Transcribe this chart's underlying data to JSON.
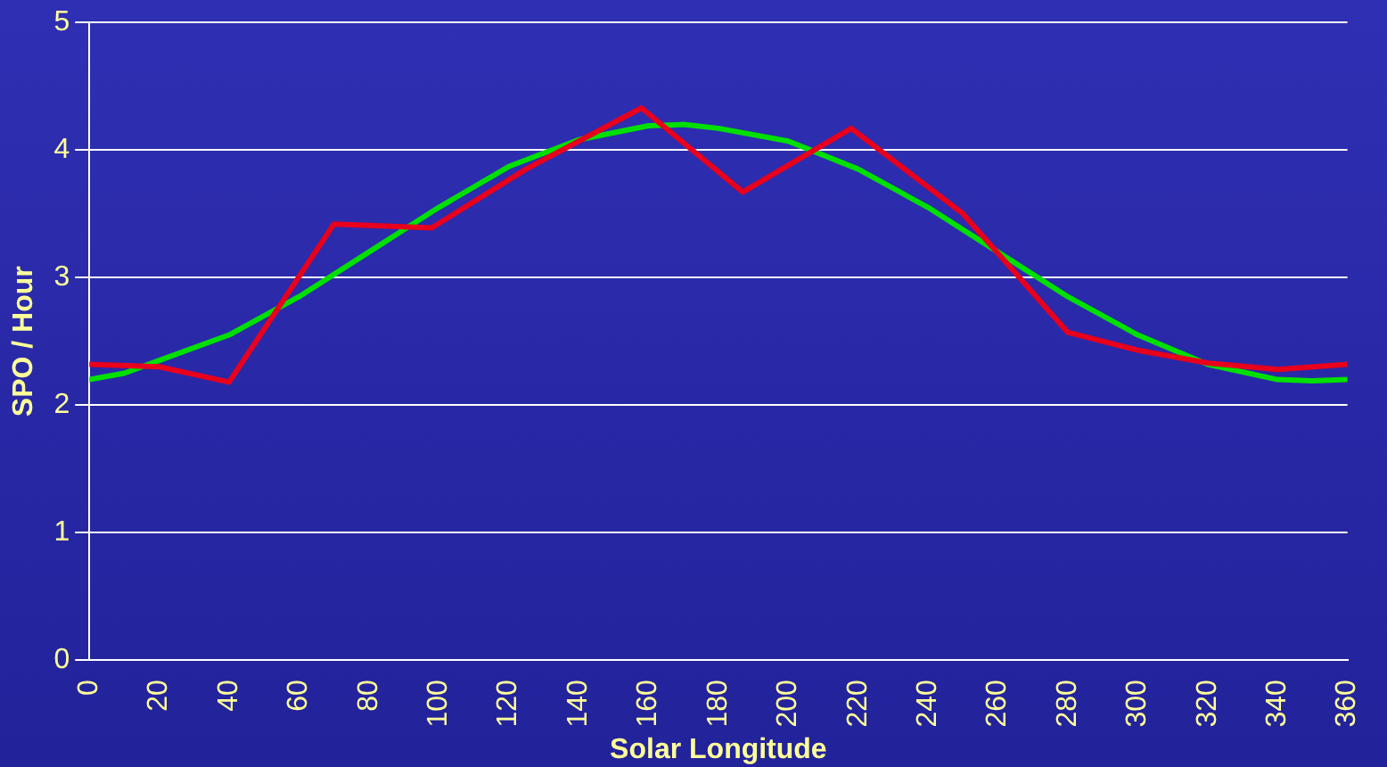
{
  "chart_data": {
    "type": "line",
    "xlabel": "Solar Longitude",
    "ylabel": "SPO / Hour",
    "xlim": [
      0,
      360
    ],
    "xticks": [
      0,
      20,
      40,
      60,
      80,
      100,
      120,
      140,
      160,
      180,
      200,
      220,
      240,
      260,
      280,
      300,
      320,
      340,
      360
    ],
    "ylim": [
      0,
      5
    ],
    "yticks": [
      0,
      1,
      2,
      3,
      4,
      5
    ],
    "grid": "y",
    "legend": false,
    "marker": "none",
    "line_style": "solid",
    "series": [
      {
        "color": "#e8001c",
        "x": [
          0,
          20,
          40,
          70,
          98,
          125,
          158,
          187,
          218,
          250,
          280,
          300,
          320,
          340,
          360
        ],
        "values": [
          2.32,
          2.3,
          2.18,
          3.42,
          3.39,
          3.85,
          4.33,
          3.67,
          4.17,
          3.5,
          2.57,
          2.43,
          2.33,
          2.28,
          2.32
        ]
      },
      {
        "color": "#00e000",
        "x": [
          0,
          10,
          20,
          40,
          60,
          80,
          100,
          120,
          140,
          160,
          170,
          180,
          200,
          220,
          240,
          260,
          280,
          300,
          320,
          340,
          350,
          360
        ],
        "values": [
          2.2,
          2.25,
          2.35,
          2.55,
          2.85,
          3.2,
          3.55,
          3.87,
          4.08,
          4.19,
          4.2,
          4.17,
          4.07,
          3.85,
          3.55,
          3.2,
          2.85,
          2.55,
          2.32,
          2.2,
          2.19,
          2.2
        ]
      }
    ]
  }
}
